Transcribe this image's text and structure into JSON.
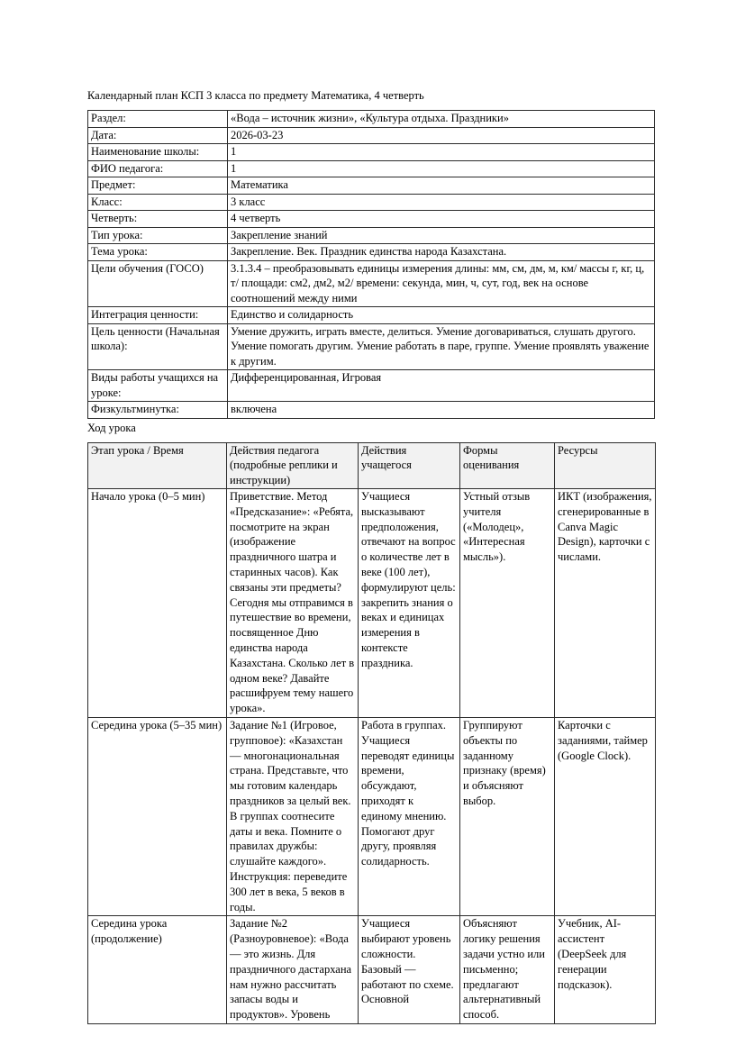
{
  "page": {
    "title": "Календарный план КСП 3 класса по предмету Математика, 4 четверть",
    "section_heading": "Ход урока"
  },
  "meta_table": {
    "rows": [
      {
        "label": "Раздел:",
        "value": "«Вода – источник жизни», «Культура отдыха. Праздники»"
      },
      {
        "label": "Дата:",
        "value": "2026-03-23"
      },
      {
        "label": "Наименование школы:",
        "value": "1"
      },
      {
        "label": "ФИО педагога:",
        "value": "1"
      },
      {
        "label": "Предмет:",
        "value": "Математика"
      },
      {
        "label": "Класс:",
        "value": "3 класс"
      },
      {
        "label": "Четверть:",
        "value": "4 четверть"
      },
      {
        "label": "Тип урока:",
        "value": "Закрепление знаний"
      },
      {
        "label": "Тема урока:",
        "value": "Закрепление. Век. Праздник единства народа Казахстана."
      },
      {
        "label": "Цели обучения (ГОСО)",
        "value": "3.1.3.4 – преобразовывать единицы измерения длины: мм, см, дм, м, км/ массы г, кг, ц, т/ площади: см2, дм2, м2/ времени: секунда, мин, ч, сут, год, век на основе соотношений между ними"
      },
      {
        "label": "Интеграция ценности:",
        "value": "Единство и солидарность"
      },
      {
        "label": "Цель ценности (Начальная школа):",
        "value": "Умение дружить, играть вместе, делиться. Умение договариваться, слушать другого. Умение помогать другим. Умение работать в паре, группе. Умение проявлять уважение к другим."
      },
      {
        "label": "Виды работы учащихся на уроке:",
        "value": "Дифференцированная, Игровая"
      },
      {
        "label": "Физкультминутка:",
        "value": "включена"
      }
    ]
  },
  "lesson_table": {
    "headers": [
      "Этап урока / Время",
      "Действия педагога (подробные реплики и инструкции)",
      "Действия учащегося",
      "Формы оценивания",
      "Ресурсы"
    ],
    "rows": [
      {
        "stage": "Начало урока (0–5 мин)",
        "teacher": "Приветствие. Метод «Предсказание»: «Ребята, посмотрите на экран (изображение праздничного шатра и старинных часов). Как связаны эти предметы? Сегодня мы отправимся в путешествие во времени, посвященное Дню единства народа Казахстана. Сколько лет в одном веке? Давайте расшифруем тему нашего урока».",
        "student": "Учащиеся высказывают предположения, отвечают на вопрос о количестве лет в веке (100 лет), формулируют цель: закрепить знания о веках и единицах измерения в контексте праздника.",
        "assessment": "Устный отзыв учителя («Молодец», «Интересная мысль»).",
        "resources": "ИКТ (изображения, сгенерированные в Canva Magic Design), карточки с числами."
      },
      {
        "stage": "Середина урока (5–35 мин)",
        "teacher": "Задание №1 (Игровое, групповое): «Казахстан — многонациональная страна. Представьте, что мы готовим календарь праздников за целый век. В группах соотнесите даты и века. Помните о правилах дружбы: слушайте каждого». Инструкция: переведите 300 лет в века, 5 веков в годы.",
        "student": "Работа в группах. Учащиеся переводят единицы времени, обсуждают, приходят к единому мнению. Помогают друг другу, проявляя солидарность.",
        "assessment": "Группируют объекты по заданному признаку (время) и объясняют выбор.",
        "resources": "Карточки с заданиями, таймер (Google Clock)."
      },
      {
        "stage": "Середина урока (продолжение)",
        "teacher": "Задание №2 (Разноуровневое): «Вода — это жизнь. Для праздничного дастархана нам нужно рассчитать запасы воды и продуктов». Уровень",
        "student": "Учащиеся выбирают уровень сложности. Базовый — работают по схеме. Основной",
        "assessment": "Объясняют логику решения задачи устно или письменно; предлагают альтернативный способ.",
        "resources": "Учебник, AI-ассистент (DeepSeek для генерации подсказок)."
      }
    ]
  }
}
